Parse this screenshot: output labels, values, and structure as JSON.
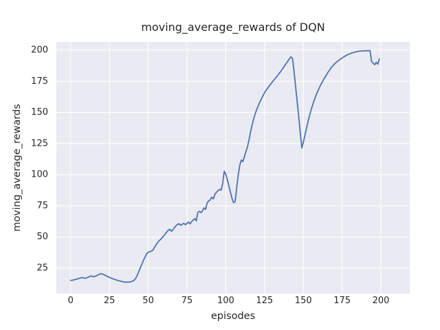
{
  "figure": {
    "title": "moving_average_rewards of DQN",
    "xlabel": "episodes",
    "ylabel": "moving_average_rewards"
  },
  "colors": {
    "figure_bg": "#ffffff",
    "axes_bg": "#eaeaf2",
    "grid": "#ffffff",
    "line": "#4c72b0",
    "text": "#262626"
  },
  "chart_data": {
    "type": "line",
    "title": "moving_average_rewards of DQN",
    "xlabel": "episodes",
    "ylabel": "moving_average_rewards",
    "grid": true,
    "legend": false,
    "x_ticks": [
      0,
      25,
      50,
      75,
      100,
      125,
      150,
      175,
      200
    ],
    "y_ticks": [
      25,
      50,
      75,
      100,
      125,
      150,
      175,
      200
    ],
    "xlim": [
      -9.2,
      218.6
    ],
    "ylim": [
      4.6,
      206.6
    ],
    "series": [
      {
        "name": "moving_average_rewards",
        "x_range": [
          0,
          199
        ],
        "y": [
          15.2,
          15.3,
          15.6,
          15.9,
          16.2,
          16.6,
          17.0,
          17.4,
          17.2,
          16.9,
          17.1,
          17.6,
          18.1,
          18.8,
          18.4,
          18.1,
          18.6,
          19.2,
          19.8,
          20.3,
          20.5,
          20.0,
          19.4,
          18.8,
          18.2,
          17.6,
          17.1,
          16.6,
          16.1,
          15.7,
          15.3,
          14.9,
          14.6,
          14.3,
          14.0,
          13.8,
          13.7,
          13.8,
          13.9,
          14.1,
          14.6,
          15.4,
          17.0,
          19.5,
          22.5,
          25.5,
          28.5,
          31.5,
          34.0,
          36.5,
          37.8,
          38.2,
          38.6,
          39.5,
          41.5,
          43.5,
          45.5,
          47.0,
          48.0,
          49.5,
          50.8,
          52.5,
          54.0,
          55.5,
          56.2,
          54.6,
          56.0,
          57.6,
          59.2,
          60.2,
          60.6,
          59.4,
          60.2,
          61.0,
          59.8,
          61.0,
          62.0,
          60.6,
          62.4,
          63.6,
          64.8,
          63.0,
          69.8,
          70.6,
          69.6,
          71.0,
          73.4,
          72.2,
          77.4,
          79.0,
          79.8,
          82.0,
          80.6,
          84.4,
          86.0,
          87.2,
          88.2,
          87.6,
          93.0,
          102.8,
          100.5,
          96.0,
          91.0,
          86.0,
          81.0,
          77.6,
          78.2,
          89.0,
          99.5,
          107.5,
          111.8,
          110.4,
          114.5,
          118.5,
          122.5,
          128.0,
          134.5,
          140.0,
          145.0,
          149.0,
          152.5,
          155.5,
          158.5,
          161.0,
          163.5,
          165.8,
          167.8,
          169.5,
          171.2,
          172.8,
          174.4,
          176.0,
          177.5,
          179.0,
          180.6,
          182.2,
          184.0,
          185.8,
          187.6,
          189.4,
          191.2,
          193.0,
          194.6,
          193.5,
          183.0,
          171.0,
          159.0,
          147.0,
          134.0,
          121.5,
          126.0,
          131.5,
          137.0,
          142.5,
          147.5,
          152.0,
          156.0,
          159.8,
          163.2,
          166.2,
          169.0,
          171.6,
          174.0,
          176.2,
          178.4,
          180.4,
          182.4,
          184.2,
          186.0,
          187.4,
          188.8,
          190.0,
          191.0,
          192.0,
          192.9,
          193.7,
          194.5,
          195.3,
          196.0,
          196.6,
          197.1,
          197.6,
          198.0,
          198.4,
          198.7,
          199.0,
          199.2,
          199.3,
          199.4,
          199.5,
          199.5,
          199.6,
          199.6,
          199.6,
          191.0,
          189.5,
          188.3,
          190.2,
          188.8,
          193.0
        ]
      }
    ]
  }
}
